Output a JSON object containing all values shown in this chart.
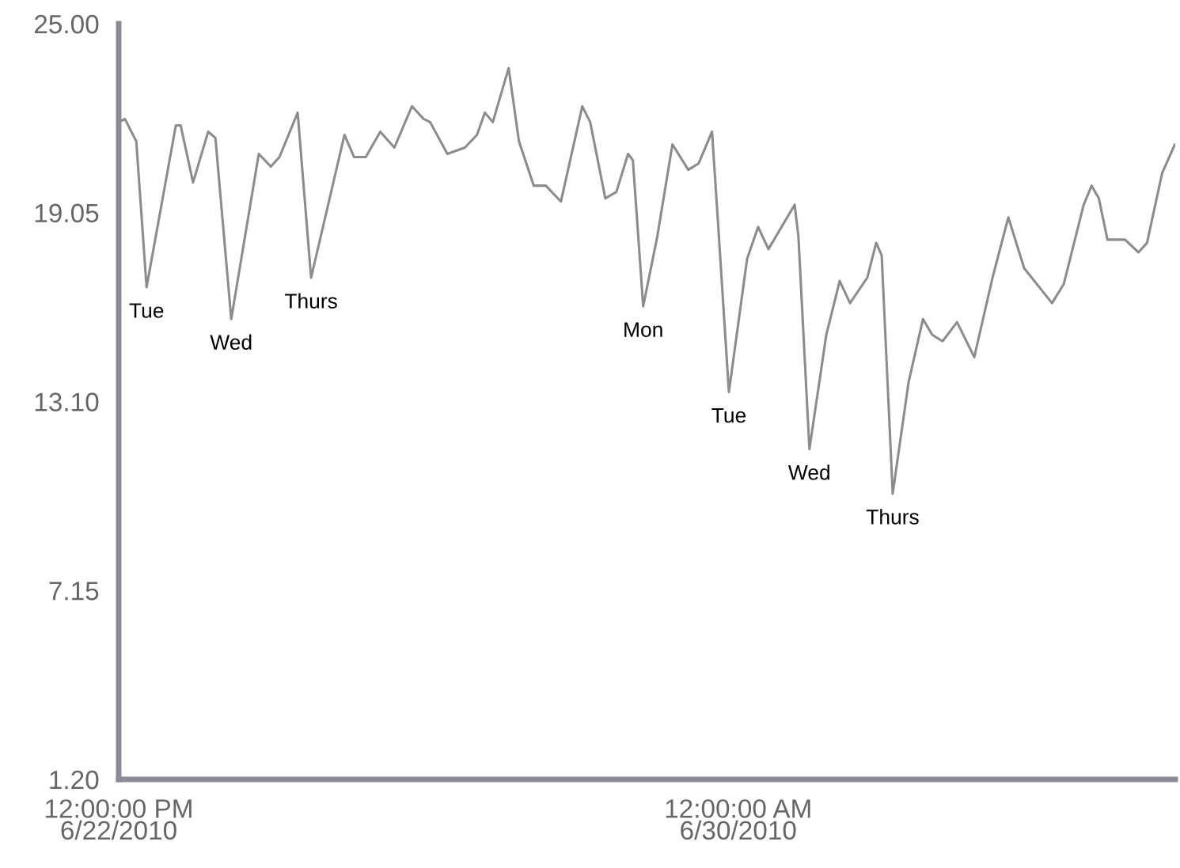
{
  "chart_data": {
    "type": "line",
    "x": [
      "2010-06-22T12:00",
      "2010-06-22T13:48",
      "2010-06-22T17:06",
      "2010-06-22T20:06",
      "2010-06-23T04:36",
      "2010-06-23T06:00",
      "2010-06-23T09:36",
      "2010-06-23T14:00",
      "2010-06-23T16:06",
      "2010-06-23T20:42",
      "2010-06-24T04:42",
      "2010-06-24T08:12",
      "2010-06-24T10:42",
      "2010-06-24T16:00",
      "2010-06-24T19:54",
      "2010-06-25T05:36",
      "2010-06-25T08:24",
      "2010-06-25T11:48",
      "2010-06-25T16:00",
      "2010-06-25T20:06",
      "2010-06-26T01:12",
      "2010-06-26T04:36",
      "2010-06-26T06:30",
      "2010-06-26T11:30",
      "2010-06-26T16:36",
      "2010-06-26T20:06",
      "2010-06-26T22:24",
      "2010-06-27T00:42",
      "2010-06-27T05:18",
      "2010-06-27T08:18",
      "2010-06-27T12:36",
      "2010-06-27T16:06",
      "2010-06-27T20:30",
      "2010-06-28T02:42",
      "2010-06-28T05:00",
      "2010-06-28T09:24",
      "2010-06-28T12:36",
      "2010-06-28T16:00",
      "2010-06-28T17:24",
      "2010-06-28T20:24",
      "2010-06-29T00:30",
      "2010-06-29T04:54",
      "2010-06-29T09:30",
      "2010-06-29T12:30",
      "2010-06-29T16:24",
      "2010-06-29T17:48",
      "2010-06-29T21:18",
      "2010-06-30T02:36",
      "2010-06-30T05:48",
      "2010-06-30T08:48",
      "2010-06-30T16:24",
      "2010-06-30T17:30",
      "2010-06-30T20:42",
      "2010-07-01T01:36",
      "2010-07-01T05:30",
      "2010-07-01T08:30",
      "2010-07-01T13:30",
      "2010-07-01T16:06",
      "2010-07-01T17:42",
      "2010-07-01T20:54",
      "2010-07-02T01:30",
      "2010-07-02T05:42",
      "2010-07-02T08:24",
      "2010-07-02T11:24",
      "2010-07-02T15:36",
      "2010-07-02T20:36",
      "2010-07-03T01:54",
      "2010-07-03T06:30",
      "2010-07-03T11:06",
      "2010-07-03T19:12",
      "2010-07-03T22:36",
      "2010-07-04T04:24",
      "2010-07-04T06:42",
      "2010-07-04T08:48",
      "2010-07-04T11:18",
      "2010-07-04T16:24",
      "2010-07-04T20:18",
      "2010-07-04T22:48",
      "2010-07-05T03:12",
      "2010-07-05T06:54"
    ],
    "series": [
      {
        "color": "#8c8c8c",
        "values": [
          21.9,
          22.0,
          21.3,
          16.7,
          21.8,
          21.8,
          20.0,
          21.6,
          21.4,
          15.7,
          20.9,
          20.5,
          20.8,
          22.2,
          17.0,
          21.5,
          20.8,
          20.8,
          21.6,
          21.1,
          22.4,
          22.0,
          21.9,
          20.9,
          21.1,
          21.5,
          22.2,
          21.9,
          23.6,
          21.3,
          19.9,
          19.9,
          19.4,
          22.4,
          21.9,
          19.5,
          19.7,
          20.9,
          20.7,
          16.1,
          18.3,
          21.2,
          20.4,
          20.6,
          21.6,
          19.3,
          13.4,
          17.6,
          18.6,
          17.9,
          19.3,
          18.3,
          11.6,
          15.2,
          16.9,
          16.2,
          17.0,
          18.1,
          17.7,
          10.2,
          13.7,
          15.7,
          15.2,
          15.0,
          15.6,
          14.5,
          17.0,
          18.9,
          17.3,
          16.2,
          16.8,
          19.3,
          19.9,
          19.5,
          18.2,
          18.2,
          17.8,
          18.1,
          20.3,
          21.2
        ]
      }
    ],
    "xlim": [
      "2010-06-22T12:00",
      "2010-07-05T07:00"
    ],
    "xticks": [
      {
        "value": "2010-06-22T12:00",
        "label": "12:00:00 PM\n6/22/2010"
      },
      {
        "value": "2010-06-30T00:00",
        "label": "12:00:00 AM\n6/30/2010"
      }
    ],
    "ylim": [
      1.2,
      25
    ],
    "yticks": [
      {
        "value": 1.2,
        "label": "1.20"
      },
      {
        "value": 7.15,
        "label": "7.15"
      },
      {
        "value": 13.1,
        "label": "13.10"
      },
      {
        "value": 19.05,
        "label": "19.05"
      },
      {
        "value": 25,
        "label": "25.00"
      }
    ],
    "grid": false,
    "marker": "none",
    "line_style": "solid",
    "annotations": [
      {
        "text": "Tue",
        "x": "2010-06-22T20:06",
        "y": 16.7
      },
      {
        "text": "Wed",
        "x": "2010-06-23T20:42",
        "y": 15.7
      },
      {
        "text": "Thurs",
        "x": "2010-06-24T19:54",
        "y": 17.0
      },
      {
        "text": "Mon",
        "x": "2010-06-28T20:24",
        "y": 16.1
      },
      {
        "text": "Tue",
        "x": "2010-06-29T21:18",
        "y": 13.4
      },
      {
        "text": "Wed",
        "x": "2010-06-30T20:42",
        "y": 11.6
      },
      {
        "text": "Thurs",
        "x": "2010-07-01T20:54",
        "y": 10.2
      }
    ]
  }
}
